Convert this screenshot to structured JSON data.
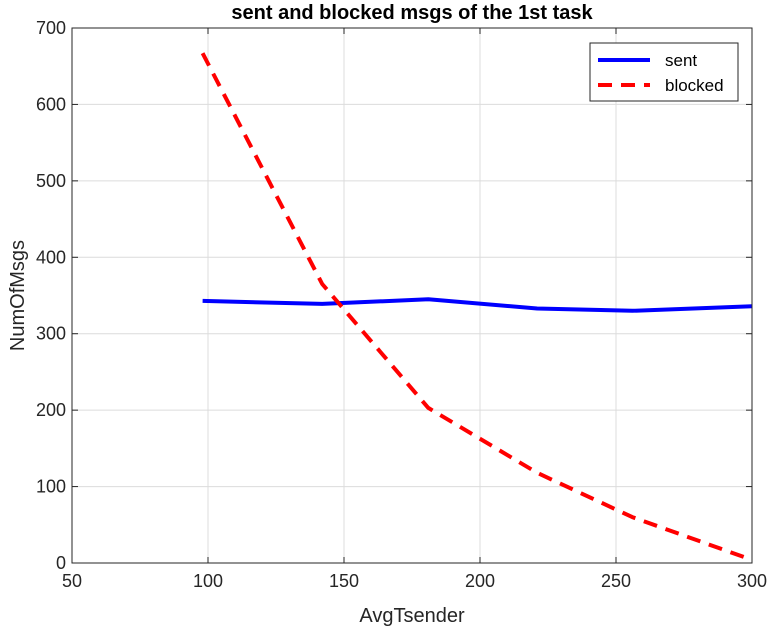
{
  "chart_data": {
    "type": "line",
    "title": "sent and blocked msgs of the 1st task",
    "xlabel": "AvgTsender",
    "ylabel": "NumOfMsgs",
    "xlim": [
      50,
      300
    ],
    "ylim": [
      0,
      700
    ],
    "xticks": [
      50,
      100,
      150,
      200,
      250,
      300
    ],
    "yticks": [
      0,
      100,
      200,
      300,
      400,
      500,
      600,
      700
    ],
    "grid": true,
    "legend_position": "top-right",
    "series": [
      {
        "name": "sent",
        "color": "#0000ff",
        "style": "solid",
        "x": [
          98,
          142,
          181,
          221,
          256,
          300
        ],
        "y": [
          343,
          339,
          345,
          333,
          330,
          336
        ]
      },
      {
        "name": "blocked",
        "color": "#ff0000",
        "style": "dashed",
        "x": [
          98,
          142,
          181,
          221,
          256,
          300
        ],
        "y": [
          667,
          365,
          203,
          118,
          60,
          4
        ]
      }
    ]
  }
}
